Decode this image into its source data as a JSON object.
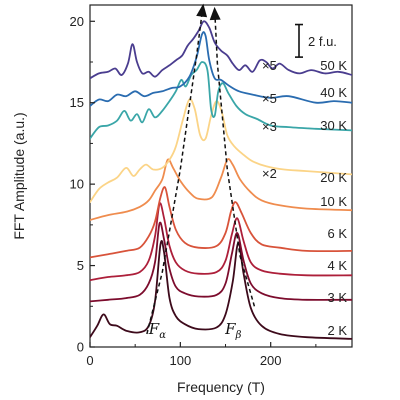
{
  "chart_data": {
    "type": "line",
    "xlabel": "Frequency (T)",
    "ylabel": "FFT Amplitude (a.u.)",
    "xlim": [
      0,
      290
    ],
    "ylim": [
      0,
      21
    ],
    "x_ticks": [
      0,
      100,
      200
    ],
    "y_ticks": [
      0,
      5,
      10,
      15,
      20
    ],
    "scale_bar": {
      "label": "2 f.u.",
      "value": 2
    },
    "peak_labels": [
      {
        "base": "F",
        "sub": "α",
        "x": 79
      },
      {
        "base": "F",
        "sub": "β",
        "x": 163
      }
    ],
    "guide_lines": {
      "alpha": [
        [
          63,
          0.8
        ],
        [
          80,
          4.6
        ],
        [
          100,
          10.9
        ],
        [
          118,
          17.9
        ],
        [
          125,
          20.9
        ]
      ],
      "beta": [
        [
          182,
          2.5
        ],
        [
          166,
          5.6
        ],
        [
          152,
          10.9
        ],
        [
          141,
          17.4
        ],
        [
          138,
          20.7
        ]
      ]
    },
    "series": [
      {
        "name": "2 K",
        "label": "2 K",
        "color": "#3d0a1b",
        "baseline": 0.6,
        "multiplier": "",
        "points": [
          [
            0,
            0.6
          ],
          [
            8,
            1.3
          ],
          [
            15,
            2.0
          ],
          [
            22,
            1.4
          ],
          [
            30,
            1.3
          ],
          [
            40,
            1.0
          ],
          [
            55,
            0.9
          ],
          [
            65,
            1.3
          ],
          [
            72,
            2.8
          ],
          [
            78,
            6.3
          ],
          [
            82,
            5.8
          ],
          [
            88,
            3.0
          ],
          [
            95,
            1.9
          ],
          [
            105,
            1.4
          ],
          [
            120,
            1.1
          ],
          [
            140,
            1.2
          ],
          [
            150,
            2.0
          ],
          [
            158,
            4.0
          ],
          [
            164,
            6.4
          ],
          [
            170,
            4.5
          ],
          [
            178,
            2.4
          ],
          [
            190,
            1.3
          ],
          [
            210,
            0.8
          ],
          [
            240,
            0.6
          ],
          [
            290,
            0.5
          ]
        ]
      },
      {
        "name": "3 K",
        "label": "3 K",
        "color": "#7c0c2d",
        "baseline": 2.8,
        "multiplier": "",
        "points": [
          [
            0,
            2.8
          ],
          [
            20,
            2.9
          ],
          [
            40,
            3.0
          ],
          [
            55,
            3.2
          ],
          [
            65,
            3.9
          ],
          [
            72,
            5.2
          ],
          [
            77,
            7.6
          ],
          [
            82,
            6.6
          ],
          [
            88,
            4.8
          ],
          [
            95,
            3.7
          ],
          [
            105,
            3.3
          ],
          [
            120,
            3.1
          ],
          [
            140,
            3.2
          ],
          [
            150,
            3.9
          ],
          [
            157,
            5.7
          ],
          [
            163,
            7.0
          ],
          [
            170,
            5.3
          ],
          [
            178,
            3.9
          ],
          [
            190,
            3.3
          ],
          [
            210,
            3.0
          ],
          [
            240,
            2.9
          ],
          [
            290,
            2.9
          ]
        ]
      },
      {
        "name": "4 K",
        "label": "4 K",
        "color": "#ad1f3a",
        "baseline": 4.1,
        "multiplier": "",
        "points": [
          [
            0,
            4.1
          ],
          [
            20,
            4.3
          ],
          [
            40,
            4.4
          ],
          [
            55,
            4.6
          ],
          [
            65,
            5.3
          ],
          [
            72,
            6.8
          ],
          [
            77,
            8.8
          ],
          [
            82,
            7.9
          ],
          [
            88,
            6.2
          ],
          [
            95,
            5.2
          ],
          [
            105,
            4.7
          ],
          [
            120,
            4.5
          ],
          [
            140,
            4.6
          ],
          [
            150,
            5.3
          ],
          [
            157,
            6.9
          ],
          [
            163,
            7.9
          ],
          [
            170,
            6.5
          ],
          [
            178,
            5.2
          ],
          [
            190,
            4.7
          ],
          [
            210,
            4.5
          ],
          [
            240,
            4.4
          ],
          [
            290,
            4.4
          ]
        ]
      },
      {
        "name": "6 K",
        "label": "6 K",
        "color": "#d8533a",
        "baseline": 5.5,
        "multiplier": "",
        "points": [
          [
            0,
            5.5
          ],
          [
            20,
            5.7
          ],
          [
            40,
            5.9
          ],
          [
            55,
            6.1
          ],
          [
            65,
            6.8
          ],
          [
            72,
            7.7
          ],
          [
            78,
            9.2
          ],
          [
            83,
            9.8
          ],
          [
            88,
            8.6
          ],
          [
            95,
            7.2
          ],
          [
            105,
            6.4
          ],
          [
            120,
            6.1
          ],
          [
            140,
            6.2
          ],
          [
            150,
            7.0
          ],
          [
            156,
            8.3
          ],
          [
            161,
            8.9
          ],
          [
            168,
            8.2
          ],
          [
            178,
            7.0
          ],
          [
            190,
            6.3
          ],
          [
            210,
            6.1
          ],
          [
            240,
            5.9
          ],
          [
            290,
            5.9
          ]
        ]
      },
      {
        "name": "10 K",
        "label": "10 K",
        "color": "#ef8c4e",
        "baseline": 7.8,
        "multiplier": "",
        "points": [
          [
            0,
            7.8
          ],
          [
            20,
            8.1
          ],
          [
            40,
            8.3
          ],
          [
            55,
            8.6
          ],
          [
            65,
            9.0
          ],
          [
            72,
            9.6
          ],
          [
            80,
            10.3
          ],
          [
            86,
            11.5
          ],
          [
            92,
            11.0
          ],
          [
            100,
            10.2
          ],
          [
            110,
            9.5
          ],
          [
            120,
            9.1
          ],
          [
            135,
            9.2
          ],
          [
            145,
            10.4
          ],
          [
            152,
            11.5
          ],
          [
            158,
            11.2
          ],
          [
            166,
            10.3
          ],
          [
            178,
            9.5
          ],
          [
            190,
            9.0
          ],
          [
            210,
            8.7
          ],
          [
            240,
            8.5
          ],
          [
            290,
            8.4
          ]
        ]
      },
      {
        "name": "20 K",
        "label": "20 K",
        "color": "#fbd487",
        "baseline": 8.9,
        "multiplier": "×2",
        "points": [
          [
            0,
            8.9
          ],
          [
            10,
            9.7
          ],
          [
            20,
            10.1
          ],
          [
            30,
            10.4
          ],
          [
            40,
            11.0
          ],
          [
            48,
            10.5
          ],
          [
            55,
            10.9
          ],
          [
            62,
            11.2
          ],
          [
            70,
            10.9
          ],
          [
            80,
            11.0
          ],
          [
            88,
            11.5
          ],
          [
            95,
            12.3
          ],
          [
            103,
            14.0
          ],
          [
            110,
            15.2
          ],
          [
            116,
            14.6
          ],
          [
            122,
            13.0
          ],
          [
            128,
            12.8
          ],
          [
            134,
            14.2
          ],
          [
            140,
            15.1
          ],
          [
            146,
            14.4
          ],
          [
            152,
            13.0
          ],
          [
            160,
            12.3
          ],
          [
            170,
            11.8
          ],
          [
            180,
            11.4
          ],
          [
            195,
            11.1
          ],
          [
            215,
            10.9
          ],
          [
            240,
            10.8
          ],
          [
            290,
            10.6
          ]
        ]
      },
      {
        "name": "30 K",
        "label": "30 K",
        "color": "#3aa6a8",
        "baseline": 12.8,
        "multiplier": "×3",
        "points": [
          [
            0,
            12.8
          ],
          [
            10,
            13.5
          ],
          [
            20,
            13.6
          ],
          [
            30,
            13.9
          ],
          [
            38,
            14.5
          ],
          [
            45,
            13.9
          ],
          [
            52,
            14.3
          ],
          [
            58,
            13.8
          ],
          [
            65,
            14.6
          ],
          [
            72,
            14.1
          ],
          [
            80,
            14.5
          ],
          [
            88,
            15.1
          ],
          [
            95,
            15.7
          ],
          [
            101,
            16.4
          ],
          [
            106,
            16.0
          ],
          [
            112,
            16.7
          ],
          [
            118,
            17.0
          ],
          [
            124,
            17.5
          ],
          [
            130,
            17.0
          ],
          [
            134,
            14.6
          ],
          [
            138,
            14.2
          ],
          [
            142,
            15.7
          ],
          [
            147,
            16.2
          ],
          [
            153,
            15.6
          ],
          [
            162,
            14.8
          ],
          [
            172,
            14.3
          ],
          [
            185,
            14.0
          ],
          [
            200,
            13.6
          ],
          [
            220,
            13.5
          ],
          [
            250,
            13.4
          ],
          [
            290,
            13.3
          ]
        ]
      },
      {
        "name": "40 K",
        "label": "40 K",
        "color": "#2a6cb0",
        "baseline": 14.8,
        "multiplier": "×5",
        "points": [
          [
            0,
            14.8
          ],
          [
            10,
            15.2
          ],
          [
            20,
            15.1
          ],
          [
            30,
            15.5
          ],
          [
            40,
            15.4
          ],
          [
            50,
            15.7
          ],
          [
            60,
            15.4
          ],
          [
            70,
            15.6
          ],
          [
            80,
            15.7
          ],
          [
            90,
            15.9
          ],
          [
            100,
            16.0
          ],
          [
            110,
            16.6
          ],
          [
            118,
            17.8
          ],
          [
            124,
            19.2
          ],
          [
            128,
            19.1
          ],
          [
            132,
            17.6
          ],
          [
            138,
            16.5
          ],
          [
            145,
            16.4
          ],
          [
            155,
            16.0
          ],
          [
            165,
            15.7
          ],
          [
            180,
            15.5
          ],
          [
            200,
            15.3
          ],
          [
            220,
            15.4
          ],
          [
            250,
            15.0
          ],
          [
            270,
            15.1
          ],
          [
            290,
            15.0
          ]
        ]
      },
      {
        "name": "50 K",
        "label": "50 K",
        "color": "#4a3d8f",
        "baseline": 16.5,
        "multiplier": "×5",
        "points": [
          [
            0,
            16.5
          ],
          [
            10,
            16.8
          ],
          [
            20,
            16.9
          ],
          [
            28,
            17.1
          ],
          [
            35,
            16.7
          ],
          [
            42,
            17.4
          ],
          [
            47,
            18.6
          ],
          [
            52,
            17.5
          ],
          [
            58,
            16.8
          ],
          [
            65,
            16.9
          ],
          [
            72,
            16.6
          ],
          [
            80,
            17.0
          ],
          [
            88,
            17.3
          ],
          [
            95,
            17.6
          ],
          [
            102,
            17.9
          ],
          [
            108,
            18.5
          ],
          [
            114,
            18.9
          ],
          [
            120,
            19.4
          ],
          [
            126,
            20.0
          ],
          [
            132,
            19.6
          ],
          [
            138,
            18.7
          ],
          [
            145,
            18.2
          ],
          [
            152,
            17.9
          ],
          [
            158,
            17.4
          ],
          [
            165,
            17.0
          ],
          [
            172,
            17.3
          ],
          [
            180,
            16.9
          ],
          [
            188,
            17.6
          ],
          [
            195,
            17.5
          ],
          [
            202,
            17.1
          ],
          [
            210,
            17.4
          ],
          [
            220,
            17.0
          ],
          [
            232,
            16.8
          ],
          [
            245,
            17.0
          ],
          [
            260,
            16.8
          ],
          [
            275,
            16.9
          ],
          [
            290,
            16.7
          ]
        ]
      }
    ]
  }
}
